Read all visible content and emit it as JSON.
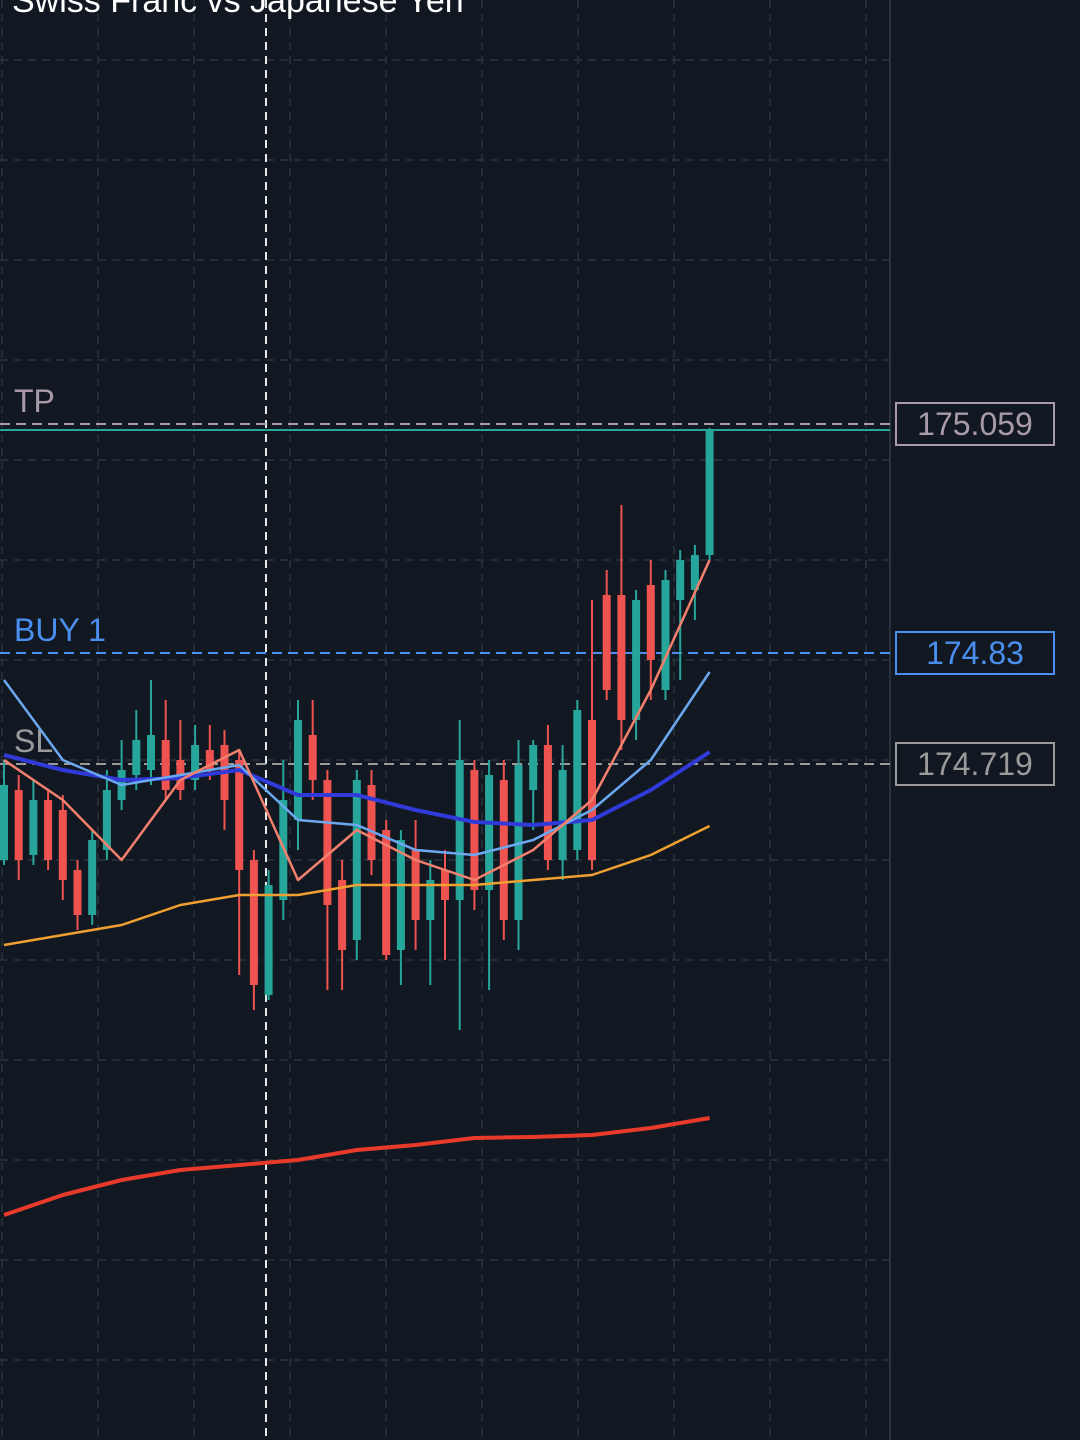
{
  "chart_data": {
    "type": "candlestick",
    "title": "Swiss Franc vs Japanese Yen",
    "ylim": [
      174.043,
      175.483
    ],
    "up_color": "#26a69a",
    "down_color": "#ef5350",
    "open": [
      174.623,
      174.693,
      174.628,
      174.683,
      174.673,
      174.613,
      174.568,
      174.633,
      174.683,
      174.708,
      174.713,
      174.743,
      174.723,
      174.703,
      174.733,
      174.738,
      174.723,
      174.623,
      174.488,
      174.583,
      174.663,
      174.748,
      174.703,
      174.603,
      174.543,
      174.698,
      174.653,
      174.533,
      174.633,
      174.563,
      174.613,
      174.583,
      174.713,
      174.593,
      174.703,
      174.563,
      174.693,
      174.738,
      174.623,
      174.633,
      174.763,
      174.888,
      174.888,
      174.763,
      174.898,
      174.793,
      174.883,
      174.893,
      174.928
    ],
    "high": [
      174.723,
      174.708,
      174.703,
      174.693,
      174.688,
      174.623,
      174.653,
      174.713,
      174.743,
      174.773,
      174.803,
      174.783,
      174.763,
      174.758,
      174.758,
      174.753,
      174.733,
      174.633,
      174.613,
      174.723,
      174.783,
      174.783,
      174.713,
      174.623,
      174.713,
      174.713,
      174.663,
      174.653,
      174.663,
      174.623,
      174.633,
      174.763,
      174.723,
      174.723,
      174.723,
      174.743,
      174.743,
      174.758,
      174.738,
      174.783,
      174.883,
      174.913,
      174.978,
      174.893,
      174.923,
      174.913,
      174.933,
      174.938,
      175.055
    ],
    "low": [
      174.618,
      174.603,
      174.618,
      174.613,
      174.583,
      174.553,
      174.558,
      174.623,
      174.673,
      174.693,
      174.698,
      174.683,
      174.683,
      174.693,
      174.703,
      174.653,
      174.508,
      174.473,
      174.483,
      174.563,
      174.633,
      174.683,
      174.493,
      174.493,
      174.523,
      174.608,
      174.523,
      174.498,
      174.533,
      174.498,
      174.523,
      174.453,
      174.573,
      174.493,
      174.543,
      174.533,
      174.653,
      174.613,
      174.603,
      174.623,
      174.613,
      174.783,
      174.733,
      174.743,
      174.783,
      174.783,
      174.803,
      174.863,
      174.923
    ],
    "close": [
      174.698,
      174.623,
      174.683,
      174.623,
      174.603,
      174.568,
      174.643,
      174.693,
      174.713,
      174.743,
      174.748,
      174.693,
      174.693,
      174.738,
      174.713,
      174.683,
      174.613,
      174.498,
      174.598,
      174.683,
      174.763,
      174.703,
      174.578,
      174.533,
      174.703,
      174.623,
      174.528,
      174.643,
      174.563,
      174.603,
      174.583,
      174.723,
      174.593,
      174.708,
      174.563,
      174.718,
      174.738,
      174.623,
      174.713,
      174.773,
      174.623,
      174.793,
      174.763,
      174.883,
      174.823,
      174.903,
      174.923,
      174.928,
      175.053
    ],
    "series": [
      {
        "color": "#2f3ad8",
        "x": [
          0,
          4,
          8,
          12,
          16,
          20,
          24,
          28,
          32,
          36,
          40,
          44,
          48
        ],
        "values": [
          174.728,
          174.713,
          174.703,
          174.705,
          174.713,
          174.688,
          174.688,
          174.673,
          174.661,
          174.658,
          174.663,
          174.693,
          174.731
        ]
      },
      {
        "color": "#6aa8f0",
        "x": [
          0,
          4,
          8,
          12,
          16,
          20,
          24,
          28,
          32,
          36,
          40,
          44,
          48
        ],
        "values": [
          174.803,
          174.723,
          174.698,
          174.708,
          174.718,
          174.663,
          174.658,
          174.633,
          174.628,
          174.643,
          174.673,
          174.723,
          174.811
        ]
      },
      {
        "color": "#f3806e",
        "x": [
          0,
          4,
          8,
          12,
          16,
          20,
          24,
          28,
          32,
          36,
          40,
          44,
          48
        ],
        "values": [
          174.723,
          174.683,
          174.623,
          174.703,
          174.733,
          174.603,
          174.653,
          174.623,
          174.603,
          174.633,
          174.683,
          174.793,
          174.923
        ]
      },
      {
        "color": "#f0a030",
        "x": [
          0,
          4,
          8,
          12,
          16,
          20,
          24,
          28,
          32,
          36,
          40,
          44,
          48
        ],
        "values": [
          174.538,
          174.548,
          174.558,
          174.578,
          174.588,
          174.588,
          174.598,
          174.598,
          174.598,
          174.603,
          174.608,
          174.628,
          174.657
        ]
      },
      {
        "color": "#e83a2a",
        "x": [
          0,
          4,
          8,
          12,
          16,
          20,
          24,
          28,
          32,
          36,
          40,
          44,
          48
        ],
        "values": [
          174.268,
          174.288,
          174.303,
          174.313,
          174.318,
          174.323,
          174.333,
          174.338,
          174.345,
          174.346,
          174.348,
          174.355,
          174.365
        ]
      }
    ],
    "levels": [
      {
        "label": "TP",
        "value": 175.059,
        "color": "#a89aa8"
      },
      {
        "label": "BUY 1",
        "value": 174.83,
        "color": "#4a8ff0"
      },
      {
        "label": "SL",
        "value": 174.719,
        "color": "#9a9a9a"
      }
    ]
  }
}
